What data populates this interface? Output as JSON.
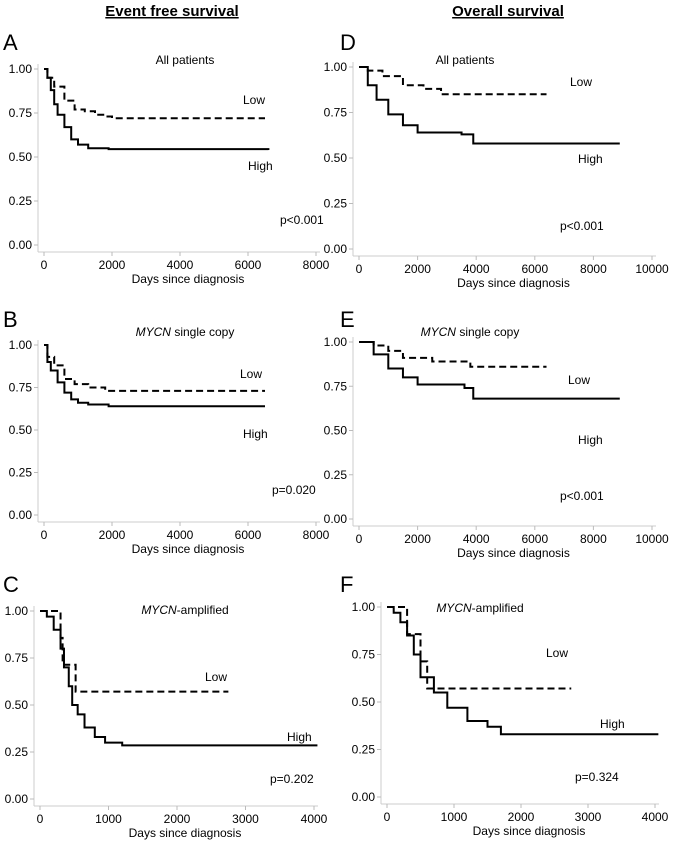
{
  "headers": {
    "left": "Event free survival",
    "right": "Overall survival"
  },
  "chart_data": [
    {
      "type": "line",
      "panel": "A",
      "subtitle": "All patients",
      "subtitle_italic": "",
      "xlabel": "Days since diagnosis",
      "xlim": [
        0,
        8000
      ],
      "xticks": [
        0,
        2000,
        4000,
        6000,
        8000
      ],
      "ylim": [
        0,
        1
      ],
      "yticks": [
        "0.00",
        "0.25",
        "0.50",
        "0.75",
        "1.00"
      ],
      "p_value": "p<0.001",
      "series": [
        {
          "name": "Low",
          "style": "dashed",
          "points": [
            [
              0,
              1
            ],
            [
              100,
              0.95
            ],
            [
              300,
              0.9
            ],
            [
              600,
              0.82
            ],
            [
              900,
              0.77
            ],
            [
              1200,
              0.76
            ],
            [
              1500,
              0.74
            ],
            [
              1800,
              0.73
            ],
            [
              2000,
              0.72
            ],
            [
              6500,
              0.72
            ]
          ]
        },
        {
          "name": "High",
          "style": "solid",
          "points": [
            [
              0,
              1
            ],
            [
              100,
              0.95
            ],
            [
              200,
              0.88
            ],
            [
              300,
              0.8
            ],
            [
              400,
              0.74
            ],
            [
              600,
              0.67
            ],
            [
              800,
              0.6
            ],
            [
              1000,
              0.57
            ],
            [
              1300,
              0.55
            ],
            [
              1900,
              0.545
            ],
            [
              6600,
              0.54
            ]
          ]
        }
      ]
    },
    {
      "type": "line",
      "panel": "B",
      "subtitle": " single copy",
      "subtitle_italic": "MYCN",
      "xlabel": "Days since diagnosis",
      "xlim": [
        0,
        8000
      ],
      "xticks": [
        0,
        2000,
        4000,
        6000,
        8000
      ],
      "ylim": [
        0,
        1
      ],
      "yticks": [
        "0.00",
        "0.25",
        "0.50",
        "0.75",
        "1.00"
      ],
      "p_value": "p=0.020",
      "series": [
        {
          "name": "Low",
          "style": "dashed",
          "points": [
            [
              0,
              1
            ],
            [
              100,
              0.93
            ],
            [
              300,
              0.88
            ],
            [
              600,
              0.8
            ],
            [
              900,
              0.77
            ],
            [
              1300,
              0.75
            ],
            [
              1800,
              0.73
            ],
            [
              6500,
              0.73
            ]
          ]
        },
        {
          "name": "High",
          "style": "solid",
          "points": [
            [
              0,
              1
            ],
            [
              100,
              0.9
            ],
            [
              200,
              0.85
            ],
            [
              400,
              0.78
            ],
            [
              600,
              0.72
            ],
            [
              800,
              0.68
            ],
            [
              1000,
              0.66
            ],
            [
              1300,
              0.65
            ],
            [
              1900,
              0.64
            ],
            [
              6500,
              0.64
            ]
          ]
        }
      ]
    },
    {
      "type": "line",
      "panel": "C",
      "subtitle": "-amplified",
      "subtitle_italic": "MYCN",
      "xlabel": "Days since diagnosis",
      "xlim": [
        0,
        4000
      ],
      "xticks": [
        0,
        1000,
        2000,
        3000,
        4000
      ],
      "ylim": [
        0,
        1
      ],
      "yticks": [
        "0.00",
        "0.25",
        "0.50",
        "0.75",
        "1.00"
      ],
      "p_value": "p=0.202",
      "series": [
        {
          "name": "Low",
          "style": "dashed",
          "points": [
            [
              0,
              1
            ],
            [
              300,
              0.857
            ],
            [
              330,
              0.714
            ],
            [
              520,
              0.571
            ],
            [
              2750,
              0.571
            ]
          ]
        },
        {
          "name": "High",
          "style": "solid",
          "points": [
            [
              0,
              1
            ],
            [
              100,
              0.97
            ],
            [
              200,
              0.9
            ],
            [
              300,
              0.8
            ],
            [
              350,
              0.7
            ],
            [
              420,
              0.6
            ],
            [
              470,
              0.5
            ],
            [
              550,
              0.45
            ],
            [
              650,
              0.38
            ],
            [
              800,
              0.33
            ],
            [
              950,
              0.3
            ],
            [
              1200,
              0.285
            ],
            [
              4050,
              0.285
            ]
          ]
        }
      ]
    },
    {
      "type": "line",
      "panel": "D",
      "subtitle": "All patients",
      "subtitle_italic": "",
      "xlabel": "Days since diagnosis",
      "xlim": [
        0,
        10000
      ],
      "xticks": [
        0,
        2000,
        4000,
        6000,
        8000,
        10000
      ],
      "ylim": [
        0,
        1
      ],
      "yticks": [
        "0.00",
        "0.25",
        "0.50",
        "0.75",
        "1.00"
      ],
      "p_value": "p<0.001",
      "series": [
        {
          "name": "Low",
          "style": "dashed",
          "points": [
            [
              0,
              1
            ],
            [
              300,
              0.98
            ],
            [
              800,
              0.95
            ],
            [
              1500,
              0.9
            ],
            [
              2200,
              0.88
            ],
            [
              2800,
              0.85
            ],
            [
              6400,
              0.85
            ]
          ]
        },
        {
          "name": "High",
          "style": "solid",
          "points": [
            [
              0,
              1
            ],
            [
              300,
              0.9
            ],
            [
              600,
              0.82
            ],
            [
              1000,
              0.74
            ],
            [
              1500,
              0.68
            ],
            [
              2000,
              0.64
            ],
            [
              3500,
              0.63
            ],
            [
              3900,
              0.58
            ],
            [
              8900,
              0.58
            ]
          ]
        }
      ]
    },
    {
      "type": "line",
      "panel": "E",
      "subtitle": " single copy",
      "subtitle_italic": "MYCN",
      "xlabel": "Days since diagnosis",
      "xlim": [
        0,
        10000
      ],
      "xticks": [
        0,
        2000,
        4000,
        6000,
        8000,
        10000
      ],
      "ylim": [
        0,
        1
      ],
      "yticks": [
        "0.00",
        "0.25",
        "0.50",
        "0.75",
        "1.00"
      ],
      "p_value": "p<0.001",
      "series": [
        {
          "name": "Low",
          "style": "dashed",
          "points": [
            [
              0,
              1
            ],
            [
              500,
              0.98
            ],
            [
              1000,
              0.95
            ],
            [
              1500,
              0.91
            ],
            [
              2500,
              0.89
            ],
            [
              3800,
              0.86
            ],
            [
              6400,
              0.86
            ]
          ]
        },
        {
          "name": "High",
          "style": "solid",
          "points": [
            [
              0,
              1
            ],
            [
              500,
              0.93
            ],
            [
              1000,
              0.85
            ],
            [
              1500,
              0.8
            ],
            [
              2000,
              0.76
            ],
            [
              3600,
              0.74
            ],
            [
              3900,
              0.68
            ],
            [
              8900,
              0.68
            ]
          ]
        }
      ]
    },
    {
      "type": "line",
      "panel": "F",
      "subtitle": "-amplified",
      "subtitle_italic": "MYCN",
      "xlabel": "Days since diagnosis",
      "xlim": [
        0,
        4000
      ],
      "xticks": [
        0,
        1000,
        2000,
        3000,
        4000
      ],
      "ylim": [
        0,
        1
      ],
      "yticks": [
        "0.00",
        "0.25",
        "0.50",
        "0.75",
        "1.00"
      ],
      "p_value": "p=0.324",
      "series": [
        {
          "name": "Low",
          "style": "dashed",
          "points": [
            [
              0,
              1
            ],
            [
              300,
              0.857
            ],
            [
              500,
              0.714
            ],
            [
              600,
              0.571
            ],
            [
              2750,
              0.571
            ]
          ]
        },
        {
          "name": "High",
          "style": "solid",
          "points": [
            [
              0,
              1
            ],
            [
              100,
              0.97
            ],
            [
              200,
              0.92
            ],
            [
              300,
              0.85
            ],
            [
              400,
              0.75
            ],
            [
              500,
              0.63
            ],
            [
              700,
              0.55
            ],
            [
              900,
              0.47
            ],
            [
              1200,
              0.4
            ],
            [
              1500,
              0.37
            ],
            [
              1700,
              0.33
            ],
            [
              4050,
              0.33
            ]
          ]
        }
      ]
    }
  ]
}
